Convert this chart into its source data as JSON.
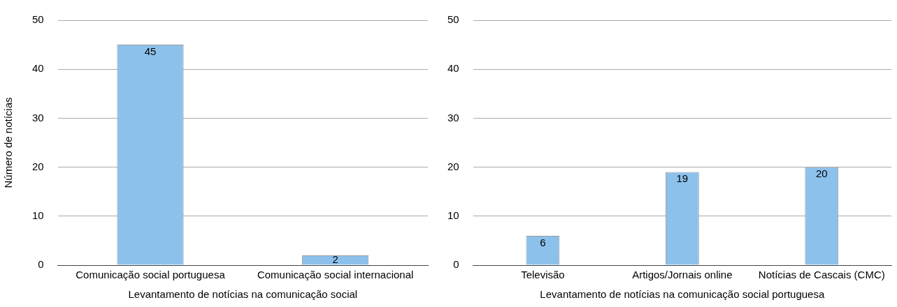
{
  "chart_data": [
    {
      "type": "bar",
      "ylabel": "Número de notícias",
      "xlabel": "Levantamento de notícias na comunicação social",
      "categories": [
        "Comunicação social portuguesa",
        "Comunicação social internacional"
      ],
      "values": [
        45,
        2
      ],
      "color": "#8cc1ec",
      "ylim": [
        0,
        50
      ],
      "yticks": [
        0,
        10,
        20,
        30,
        40,
        50
      ],
      "grid": "y",
      "data_labels": true
    },
    {
      "type": "bar",
      "xlabel": "Levantamento de notícias na comunicação social portuguesa",
      "categories": [
        "Televisão",
        "Artigos/Jornais online",
        "Notícias de Cascais (CMC)"
      ],
      "values": [
        6,
        19,
        20
      ],
      "color": "#8cc1ec",
      "ylim": [
        0,
        50
      ],
      "yticks": [
        0,
        10,
        20,
        30,
        40,
        50
      ],
      "grid": "y",
      "data_labels": true
    }
  ]
}
